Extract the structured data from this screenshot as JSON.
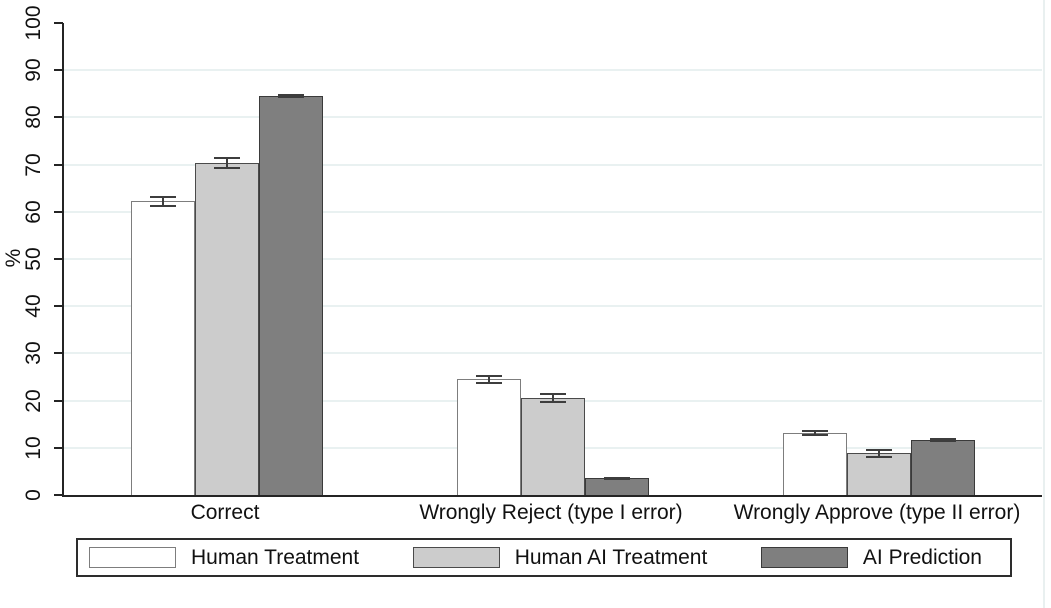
{
  "chart_data": {
    "type": "bar",
    "title": "",
    "xlabel": "",
    "ylabel": "%",
    "ylim": [
      0,
      100
    ],
    "yticks": [
      0,
      10,
      20,
      30,
      40,
      50,
      60,
      70,
      80,
      90,
      100
    ],
    "grid": true,
    "legend_position": "bottom",
    "error_bars": true,
    "categories": [
      "Correct",
      "Wrongly Reject (type I error)",
      "Wrongly Approve (type II error)"
    ],
    "series": [
      {
        "name": "Human Treatment",
        "fill": "#ffffff",
        "outline": "#7d7d7d",
        "values": [
          62.2,
          24.5,
          13.1
        ],
        "error_margins": [
          1.1,
          0.9,
          0.7
        ]
      },
      {
        "name": "Human AI Treatment",
        "fill": "#cccccc",
        "outline": "#4a4a4a",
        "values": [
          70.4,
          20.5,
          8.8
        ],
        "error_margins": [
          1.3,
          1.1,
          0.9
        ]
      },
      {
        "name": "AI Prediction",
        "fill": "#7f7f7f",
        "outline": "#3a3a3a",
        "values": [
          84.6,
          3.5,
          11.6
        ],
        "error_margins": [
          0.4,
          0.3,
          0.4
        ]
      }
    ],
    "colors": {
      "error_bar": "#3d3d3d",
      "gridline": "#e9f1f1",
      "axis": "#242424",
      "text": "#111111",
      "legend_border": "#2d2d2d"
    }
  }
}
